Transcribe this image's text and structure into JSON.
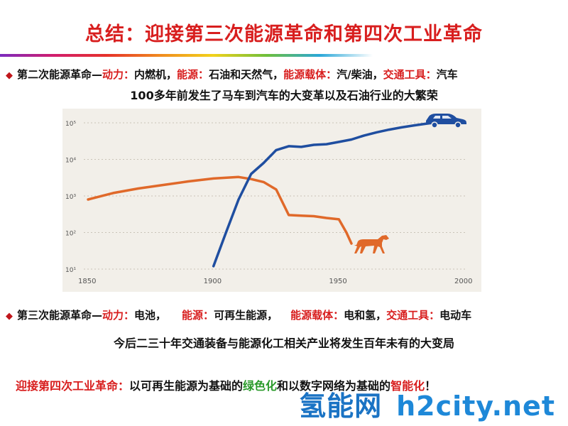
{
  "title": "总结：迎接第三次能源革命和第四次工业革命",
  "second_revolution": {
    "name": "第二次能源革命—",
    "power_label": "动力：",
    "power": "内燃机，",
    "energy_label": "能源：",
    "energy": "石油和天然气，",
    "carrier_label": "能源载体：",
    "carrier": "汽/柴油，",
    "transport_label": "交通工具：",
    "transport": "汽车",
    "summary": "100多年前发生了马车到汽车的大变革以及石油行业的大繁荣"
  },
  "third_revolution": {
    "name": "第三次能源革命—",
    "power_label": "动力：",
    "power": "电池，",
    "energy_label": "能源：",
    "energy": "可再生能源，",
    "carrier_label": "能源载体：",
    "carrier": "电和氢，",
    "transport_label": "交通工具：",
    "transport": "电动车",
    "summary": "今后二三十年交通装备与能源化工相关产业将发生百年未有的大变局"
  },
  "closing": {
    "prefix": "迎接第四次工业革命：",
    "part1": "以可再生能源为基础的",
    "green": "绿色化",
    "part2": "和以数字网络为基础的",
    "smart": "智能化",
    "suffix": "！"
  },
  "watermark": {
    "cn": "氢能网",
    "en": "h2city.net"
  },
  "colors": {
    "accent_red": "#d81e1e",
    "horse_line": "#e0692a",
    "car_line": "#1f4ea0",
    "green": "#2a9a2a",
    "watermark_blue": "#1a73c4"
  },
  "chart_data": {
    "type": "line",
    "x_scale": "linear",
    "y_scale": "log",
    "xlim": [
      1850,
      2000
    ],
    "ylim": [
      1,
      100000
    ],
    "x_ticks": [
      "1850",
      "1900",
      "1950",
      "2000"
    ],
    "y_ticks": [
      "10¹",
      "10²",
      "10³",
      "10⁴",
      "10⁵"
    ],
    "grid": "horizontal dashed",
    "series": [
      {
        "icon": "horse-icon",
        "color": "#e0692a",
        "points": [
          [
            1850,
            800
          ],
          [
            1860,
            1200
          ],
          [
            1870,
            1600
          ],
          [
            1880,
            2000
          ],
          [
            1890,
            2500
          ],
          [
            1900,
            3000
          ],
          [
            1910,
            3300
          ],
          [
            1915,
            2900
          ],
          [
            1920,
            2400
          ],
          [
            1925,
            1500
          ],
          [
            1930,
            300
          ],
          [
            1935,
            290
          ],
          [
            1940,
            280
          ],
          [
            1945,
            250
          ],
          [
            1950,
            230
          ],
          [
            1953,
            100
          ],
          [
            1955,
            50
          ]
        ]
      },
      {
        "icon": "car-icon",
        "color": "#1f4ea0",
        "points": [
          [
            1900,
            12
          ],
          [
            1905,
            100
          ],
          [
            1910,
            800
          ],
          [
            1915,
            4000
          ],
          [
            1920,
            8000
          ],
          [
            1925,
            18000
          ],
          [
            1930,
            23000
          ],
          [
            1935,
            22000
          ],
          [
            1940,
            25000
          ],
          [
            1945,
            26000
          ],
          [
            1950,
            30000
          ],
          [
            1955,
            35000
          ],
          [
            1960,
            45000
          ],
          [
            1965,
            55000
          ],
          [
            1970,
            65000
          ],
          [
            1975,
            75000
          ],
          [
            1980,
            85000
          ],
          [
            1985,
            95000
          ],
          [
            1990,
            105000
          ]
        ]
      }
    ]
  }
}
